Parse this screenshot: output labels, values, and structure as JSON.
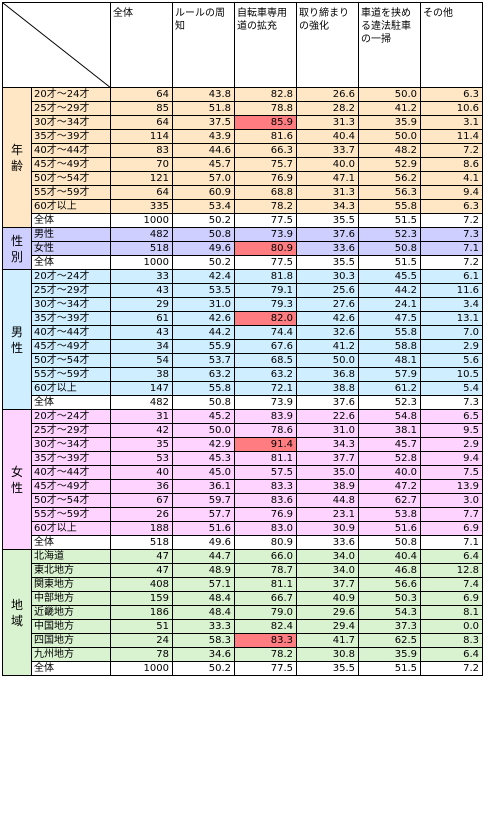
{
  "headers": [
    "全体",
    "ルールの周知",
    "自転車専用道の拡充",
    "取り締まりの強化",
    "車道を挟める違法駐車の一掃",
    "その他"
  ],
  "colors": {
    "age": "#ffe7c6",
    "sex": "#cfcfff",
    "male": "#cfeeff",
    "female": "#ffd3ff",
    "region": "#d9f2d0",
    "highlight": "#ff7c80"
  },
  "groups": [
    {
      "key": "age",
      "label": "年齢",
      "rows": [
        {
          "label": "20才～24才",
          "values": [
            "64",
            "43.8",
            "82.8",
            "26.6",
            "50.0",
            "6.3"
          ]
        },
        {
          "label": "25才～29才",
          "values": [
            "85",
            "51.8",
            "78.8",
            "28.2",
            "41.2",
            "10.6"
          ]
        },
        {
          "label": "30才～34才",
          "values": [
            "64",
            "37.5",
            "85.9",
            "31.3",
            "35.9",
            "3.1"
          ],
          "hl": 2
        },
        {
          "label": "35才～39才",
          "values": [
            "114",
            "43.9",
            "81.6",
            "40.4",
            "50.0",
            "11.4"
          ]
        },
        {
          "label": "40才～44才",
          "values": [
            "83",
            "44.6",
            "66.3",
            "33.7",
            "48.2",
            "7.2"
          ]
        },
        {
          "label": "45才～49才",
          "values": [
            "70",
            "45.7",
            "75.7",
            "40.0",
            "52.9",
            "8.6"
          ]
        },
        {
          "label": "50才～54才",
          "values": [
            "121",
            "57.0",
            "76.9",
            "47.1",
            "56.2",
            "4.1"
          ]
        },
        {
          "label": "55才～59才",
          "values": [
            "64",
            "60.9",
            "68.8",
            "31.3",
            "56.3",
            "9.4"
          ]
        },
        {
          "label": "60才以上",
          "values": [
            "335",
            "53.4",
            "78.2",
            "34.3",
            "55.8",
            "6.3"
          ]
        }
      ],
      "total": {
        "label": "全体",
        "values": [
          "1000",
          "50.2",
          "77.5",
          "35.5",
          "51.5",
          "7.2"
        ]
      }
    },
    {
      "key": "sex",
      "label": "性別",
      "rows": [
        {
          "label": "男性",
          "values": [
            "482",
            "50.8",
            "73.9",
            "37.6",
            "52.3",
            "7.3"
          ]
        },
        {
          "label": "女性",
          "values": [
            "518",
            "49.6",
            "80.9",
            "33.6",
            "50.8",
            "7.1"
          ],
          "hl": 2
        }
      ],
      "total": {
        "label": "全体",
        "values": [
          "1000",
          "50.2",
          "77.5",
          "35.5",
          "51.5",
          "7.2"
        ]
      }
    },
    {
      "key": "male",
      "label": "男性",
      "rows": [
        {
          "label": "20才～24才",
          "values": [
            "33",
            "42.4",
            "81.8",
            "30.3",
            "45.5",
            "6.1"
          ]
        },
        {
          "label": "25才～29才",
          "values": [
            "43",
            "53.5",
            "79.1",
            "25.6",
            "44.2",
            "11.6"
          ]
        },
        {
          "label": "30才～34才",
          "values": [
            "29",
            "31.0",
            "79.3",
            "27.6",
            "24.1",
            "3.4"
          ]
        },
        {
          "label": "35才～39才",
          "values": [
            "61",
            "42.6",
            "82.0",
            "42.6",
            "47.5",
            "13.1"
          ],
          "hl": 2
        },
        {
          "label": "40才～44才",
          "values": [
            "43",
            "44.2",
            "74.4",
            "32.6",
            "55.8",
            "7.0"
          ]
        },
        {
          "label": "45才～49才",
          "values": [
            "34",
            "55.9",
            "67.6",
            "41.2",
            "58.8",
            "2.9"
          ]
        },
        {
          "label": "50才～54才",
          "values": [
            "54",
            "53.7",
            "68.5",
            "50.0",
            "48.1",
            "5.6"
          ]
        },
        {
          "label": "55才～59才",
          "values": [
            "38",
            "63.2",
            "63.2",
            "36.8",
            "57.9",
            "10.5"
          ]
        },
        {
          "label": "60才以上",
          "values": [
            "147",
            "55.8",
            "72.1",
            "38.8",
            "61.2",
            "5.4"
          ]
        }
      ],
      "total": {
        "label": "全体",
        "values": [
          "482",
          "50.8",
          "73.9",
          "37.6",
          "52.3",
          "7.3"
        ]
      }
    },
    {
      "key": "female",
      "label": "女性",
      "rows": [
        {
          "label": "20才～24才",
          "values": [
            "31",
            "45.2",
            "83.9",
            "22.6",
            "54.8",
            "6.5"
          ]
        },
        {
          "label": "25才～29才",
          "values": [
            "42",
            "50.0",
            "78.6",
            "31.0",
            "38.1",
            "9.5"
          ]
        },
        {
          "label": "30才～34才",
          "values": [
            "35",
            "42.9",
            "91.4",
            "34.3",
            "45.7",
            "2.9"
          ],
          "hl": 2
        },
        {
          "label": "35才～39才",
          "values": [
            "53",
            "45.3",
            "81.1",
            "37.7",
            "52.8",
            "9.4"
          ]
        },
        {
          "label": "40才～44才",
          "values": [
            "40",
            "45.0",
            "57.5",
            "35.0",
            "40.0",
            "7.5"
          ]
        },
        {
          "label": "45才～49才",
          "values": [
            "36",
            "36.1",
            "83.3",
            "38.9",
            "47.2",
            "13.9"
          ]
        },
        {
          "label": "50才～54才",
          "values": [
            "67",
            "59.7",
            "83.6",
            "44.8",
            "62.7",
            "3.0"
          ]
        },
        {
          "label": "55才～59才",
          "values": [
            "26",
            "57.7",
            "76.9",
            "23.1",
            "53.8",
            "7.7"
          ]
        },
        {
          "label": "60才以上",
          "values": [
            "188",
            "51.6",
            "83.0",
            "30.9",
            "51.6",
            "6.9"
          ]
        }
      ],
      "total": {
        "label": "全体",
        "values": [
          "518",
          "49.6",
          "80.9",
          "33.6",
          "50.8",
          "7.1"
        ]
      }
    },
    {
      "key": "region",
      "label": "地域",
      "rows": [
        {
          "label": "北海道",
          "values": [
            "47",
            "44.7",
            "66.0",
            "34.0",
            "40.4",
            "6.4"
          ]
        },
        {
          "label": "東北地方",
          "values": [
            "47",
            "48.9",
            "78.7",
            "34.0",
            "46.8",
            "12.8"
          ]
        },
        {
          "label": "関東地方",
          "values": [
            "408",
            "57.1",
            "81.1",
            "37.7",
            "56.6",
            "7.4"
          ]
        },
        {
          "label": "中部地方",
          "values": [
            "159",
            "48.4",
            "66.7",
            "40.9",
            "50.3",
            "6.9"
          ]
        },
        {
          "label": "近畿地方",
          "values": [
            "186",
            "48.4",
            "79.0",
            "29.6",
            "54.3",
            "8.1"
          ]
        },
        {
          "label": "中国地方",
          "values": [
            "51",
            "33.3",
            "82.4",
            "29.4",
            "37.3",
            "0.0"
          ]
        },
        {
          "label": "四国地方",
          "values": [
            "24",
            "58.3",
            "83.3",
            "41.7",
            "62.5",
            "8.3"
          ],
          "hl": 2
        },
        {
          "label": "九州地方",
          "values": [
            "78",
            "34.6",
            "78.2",
            "30.8",
            "35.9",
            "6.4"
          ]
        }
      ],
      "total": {
        "label": "全体",
        "values": [
          "1000",
          "50.2",
          "77.5",
          "35.5",
          "51.5",
          "7.2"
        ]
      }
    }
  ]
}
